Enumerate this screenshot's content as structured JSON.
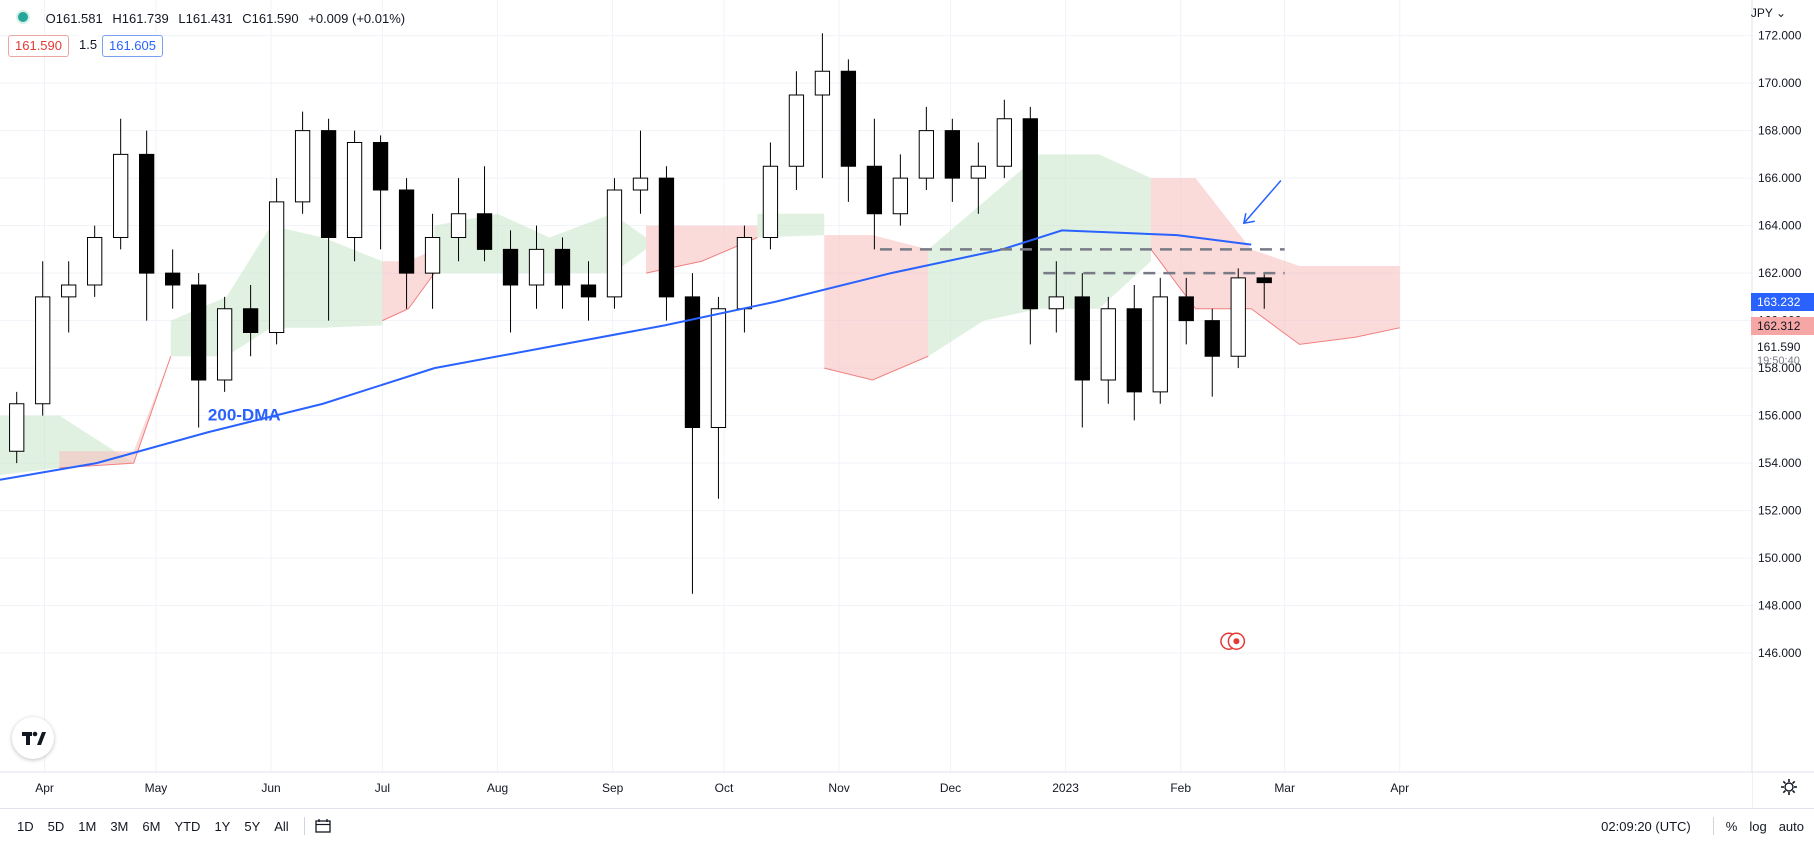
{
  "header": {
    "open": "O161.581",
    "high": "H161.739",
    "low": "L161.431",
    "close": "C161.590",
    "change": "+0.009 (+0.01%)",
    "sell_price": "161.590",
    "quantity": "1.5",
    "buy_price": "161.605",
    "currency": "JPY"
  },
  "price_axis": {
    "labels": [
      "172.000",
      "170.000",
      "168.000",
      "166.000",
      "164.000",
      "162.000",
      "160.000",
      "158.000",
      "156.000",
      "154.000",
      "152.000",
      "150.000",
      "148.000",
      "146.000"
    ],
    "tag_ma": "163.232",
    "tag_level": "162.312",
    "last_price": "161.590",
    "countdown": "19:50:40"
  },
  "time_axis": {
    "labels": [
      "Apr",
      "May",
      "Jun",
      "Jul",
      "Aug",
      "Sep",
      "Oct",
      "Nov",
      "Dec",
      "2023",
      "Feb",
      "Mar",
      "Apr"
    ]
  },
  "annotation": {
    "ma_label": "200-DMA"
  },
  "toolbar": {
    "timeframes": [
      "1D",
      "5D",
      "1M",
      "3M",
      "6M",
      "YTD",
      "1Y",
      "5Y",
      "All"
    ],
    "clock": "02:09:20 (UTC)",
    "percent": "%",
    "log": "log",
    "auto": "auto"
  },
  "colors": {
    "up_candle": "#ffffff",
    "down_candle": "#000000",
    "ma_line": "#2962ff",
    "cloud_bull": "#c8e6c9",
    "cloud_bear": "#f8bbbb",
    "level_line": "#787b86",
    "ma_tag_bg": "#2962ff",
    "level_tag_bg": "#f7a6a6"
  },
  "chart_data": {
    "type": "candlestick",
    "symbol_currency": "JPY",
    "ylim": [
      145.5,
      173.5
    ],
    "x_range": [
      "2022-03-20",
      "2023-04-28"
    ],
    "candles_weekly_approx": [
      {
        "x": "2022-03-21",
        "o": 154.5,
        "h": 157.0,
        "l": 154.0,
        "c": 156.5
      },
      {
        "x": "2022-03-28",
        "o": 156.5,
        "h": 162.5,
        "l": 156.0,
        "c": 161.0
      },
      {
        "x": "2022-04-04",
        "o": 161.0,
        "h": 162.5,
        "l": 159.5,
        "c": 161.5
      },
      {
        "x": "2022-04-11",
        "o": 161.5,
        "h": 164.0,
        "l": 161.0,
        "c": 163.5
      },
      {
        "x": "2022-04-18",
        "o": 163.5,
        "h": 168.5,
        "l": 163.0,
        "c": 167.0
      },
      {
        "x": "2022-04-25",
        "o": 167.0,
        "h": 168.0,
        "l": 160.0,
        "c": 162.0
      },
      {
        "x": "2022-05-02",
        "o": 162.0,
        "h": 163.0,
        "l": 160.5,
        "c": 161.5
      },
      {
        "x": "2022-05-09",
        "o": 161.5,
        "h": 162.0,
        "l": 155.5,
        "c": 157.5
      },
      {
        "x": "2022-05-16",
        "o": 157.5,
        "h": 161.0,
        "l": 157.0,
        "c": 160.5
      },
      {
        "x": "2022-05-23",
        "o": 160.5,
        "h": 161.5,
        "l": 158.5,
        "c": 159.5
      },
      {
        "x": "2022-05-30",
        "o": 159.5,
        "h": 166.0,
        "l": 159.0,
        "c": 165.0
      },
      {
        "x": "2022-06-06",
        "o": 165.0,
        "h": 168.8,
        "l": 164.5,
        "c": 168.0
      },
      {
        "x": "2022-06-13",
        "o": 168.0,
        "h": 168.5,
        "l": 160.0,
        "c": 163.5
      },
      {
        "x": "2022-06-20",
        "o": 163.5,
        "h": 168.0,
        "l": 162.5,
        "c": 167.5
      },
      {
        "x": "2022-06-27",
        "o": 167.5,
        "h": 167.8,
        "l": 163.0,
        "c": 165.5
      },
      {
        "x": "2022-07-04",
        "o": 165.5,
        "h": 166.0,
        "l": 160.5,
        "c": 162.0
      },
      {
        "x": "2022-07-11",
        "o": 162.0,
        "h": 164.5,
        "l": 160.5,
        "c": 163.5
      },
      {
        "x": "2022-07-18",
        "o": 163.5,
        "h": 166.0,
        "l": 162.5,
        "c": 164.5
      },
      {
        "x": "2022-07-25",
        "o": 164.5,
        "h": 166.5,
        "l": 162.5,
        "c": 163.0
      },
      {
        "x": "2022-08-01",
        "o": 163.0,
        "h": 163.8,
        "l": 159.5,
        "c": 161.5
      },
      {
        "x": "2022-08-08",
        "o": 161.5,
        "h": 164.0,
        "l": 160.5,
        "c": 163.0
      },
      {
        "x": "2022-08-15",
        "o": 163.0,
        "h": 163.5,
        "l": 160.5,
        "c": 161.5
      },
      {
        "x": "2022-08-22",
        "o": 161.5,
        "h": 162.5,
        "l": 160.0,
        "c": 161.0
      },
      {
        "x": "2022-08-29",
        "o": 161.0,
        "h": 166.0,
        "l": 160.5,
        "c": 165.5
      },
      {
        "x": "2022-09-05",
        "o": 165.5,
        "h": 168.0,
        "l": 164.5,
        "c": 166.0
      },
      {
        "x": "2022-09-12",
        "o": 166.0,
        "h": 166.5,
        "l": 160.0,
        "c": 161.0
      },
      {
        "x": "2022-09-19",
        "o": 161.0,
        "h": 162.0,
        "l": 148.5,
        "c": 155.5
      },
      {
        "x": "2022-09-26",
        "o": 155.5,
        "h": 161.0,
        "l": 152.5,
        "c": 160.5
      },
      {
        "x": "2022-10-03",
        "o": 160.5,
        "h": 164.0,
        "l": 159.5,
        "c": 163.5
      },
      {
        "x": "2022-10-10",
        "o": 163.5,
        "h": 167.5,
        "l": 163.0,
        "c": 166.5
      },
      {
        "x": "2022-10-17",
        "o": 166.5,
        "h": 170.5,
        "l": 165.5,
        "c": 169.5
      },
      {
        "x": "2022-10-24",
        "o": 169.5,
        "h": 172.1,
        "l": 166.0,
        "c": 170.5
      },
      {
        "x": "2022-10-31",
        "o": 170.5,
        "h": 171.0,
        "l": 165.0,
        "c": 166.5
      },
      {
        "x": "2022-11-07",
        "o": 166.5,
        "h": 168.5,
        "l": 163.0,
        "c": 164.5
      },
      {
        "x": "2022-11-14",
        "o": 164.5,
        "h": 167.0,
        "l": 164.0,
        "c": 166.0
      },
      {
        "x": "2022-11-21",
        "o": 166.0,
        "h": 169.0,
        "l": 165.5,
        "c": 168.0
      },
      {
        "x": "2022-11-28",
        "o": 168.0,
        "h": 168.5,
        "l": 165.0,
        "c": 166.0
      },
      {
        "x": "2022-12-05",
        "o": 166.0,
        "h": 167.5,
        "l": 164.5,
        "c": 166.5
      },
      {
        "x": "2022-12-12",
        "o": 166.5,
        "h": 169.3,
        "l": 166.0,
        "c": 168.5
      },
      {
        "x": "2022-12-19",
        "o": 168.5,
        "h": 169.0,
        "l": 159.0,
        "c": 160.5
      },
      {
        "x": "2022-12-26",
        "o": 160.5,
        "h": 162.5,
        "l": 159.5,
        "c": 161.0
      },
      {
        "x": "2023-01-02",
        "o": 161.0,
        "h": 162.0,
        "l": 155.5,
        "c": 157.5
      },
      {
        "x": "2023-01-09",
        "o": 157.5,
        "h": 161.0,
        "l": 156.5,
        "c": 160.5
      },
      {
        "x": "2023-01-16",
        "o": 160.5,
        "h": 161.5,
        "l": 155.8,
        "c": 157.0
      },
      {
        "x": "2023-01-23",
        "o": 157.0,
        "h": 161.8,
        "l": 156.5,
        "c": 161.0
      },
      {
        "x": "2023-01-30",
        "o": 161.0,
        "h": 161.8,
        "l": 159.0,
        "c": 160.0
      },
      {
        "x": "2023-02-06",
        "o": 160.0,
        "h": 160.5,
        "l": 156.8,
        "c": 158.5
      },
      {
        "x": "2023-02-13",
        "o": 158.5,
        "h": 162.2,
        "l": 158.0,
        "c": 161.8
      },
      {
        "x": "2023-02-20",
        "o": 161.8,
        "h": 162.0,
        "l": 160.5,
        "c": 161.6
      }
    ],
    "ma_200": [
      {
        "x": "2022-03-20",
        "y": 153.3
      },
      {
        "x": "2022-04-15",
        "y": 154.0
      },
      {
        "x": "2022-05-15",
        "y": 155.3
      },
      {
        "x": "2022-06-15",
        "y": 156.5
      },
      {
        "x": "2022-07-15",
        "y": 158.0
      },
      {
        "x": "2022-08-15",
        "y": 158.9
      },
      {
        "x": "2022-09-15",
        "y": 159.8
      },
      {
        "x": "2022-10-15",
        "y": 160.8
      },
      {
        "x": "2022-11-15",
        "y": 162.0
      },
      {
        "x": "2022-12-15",
        "y": 163.0
      },
      {
        "x": "2022-12-31",
        "y": 163.8
      },
      {
        "x": "2023-01-31",
        "y": 163.6
      },
      {
        "x": "2023-02-20",
        "y": 163.2
      }
    ],
    "horizontal_levels": [
      {
        "y": 163.0,
        "from": "2022-11-12",
        "to": "2023-03-01",
        "style": "dashed"
      },
      {
        "y": 162.0,
        "from": "2022-12-26",
        "to": "2023-03-01",
        "style": "dashed"
      }
    ]
  }
}
